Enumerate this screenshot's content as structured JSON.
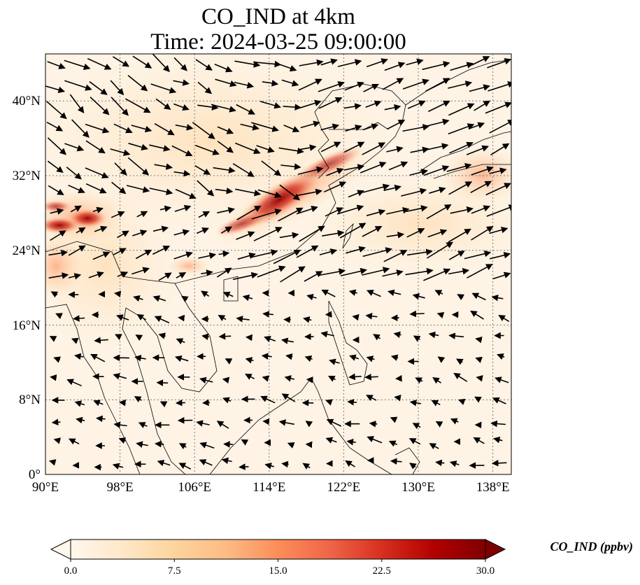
{
  "title_line1": "CO_IND at 4km",
  "title_line2": "Time: 2024-03-25 09:00:00",
  "map": {
    "lon_range": [
      90,
      140
    ],
    "lat_range": [
      0,
      45
    ],
    "lon_ticks": [
      90,
      98,
      106,
      114,
      122,
      130,
      138
    ],
    "lon_labels": [
      "90°E",
      "98°E",
      "106°E",
      "114°E",
      "122°E",
      "130°E",
      "138°E"
    ],
    "lat_ticks": [
      0,
      8,
      16,
      24,
      32,
      40
    ],
    "lat_labels": [
      "0°",
      "8°N",
      "16°N",
      "24°N",
      "32°N",
      "40°N"
    ],
    "gridlines": true,
    "field_name": "CO_IND",
    "vectors_shown": true
  },
  "colorbar": {
    "label": "CO_IND (ppbv)",
    "min": 0.0,
    "max": 30.0,
    "ticks": [
      "0.0",
      "7.5",
      "15.0",
      "22.5",
      "30.0"
    ],
    "colormap": "OrRd",
    "colors": [
      "#fff7ec",
      "#fee8c8",
      "#fdd49e",
      "#fdbb84",
      "#fc8d59",
      "#ef6548",
      "#d7301f",
      "#b30000",
      "#7f0000"
    ],
    "extend": "both"
  }
}
